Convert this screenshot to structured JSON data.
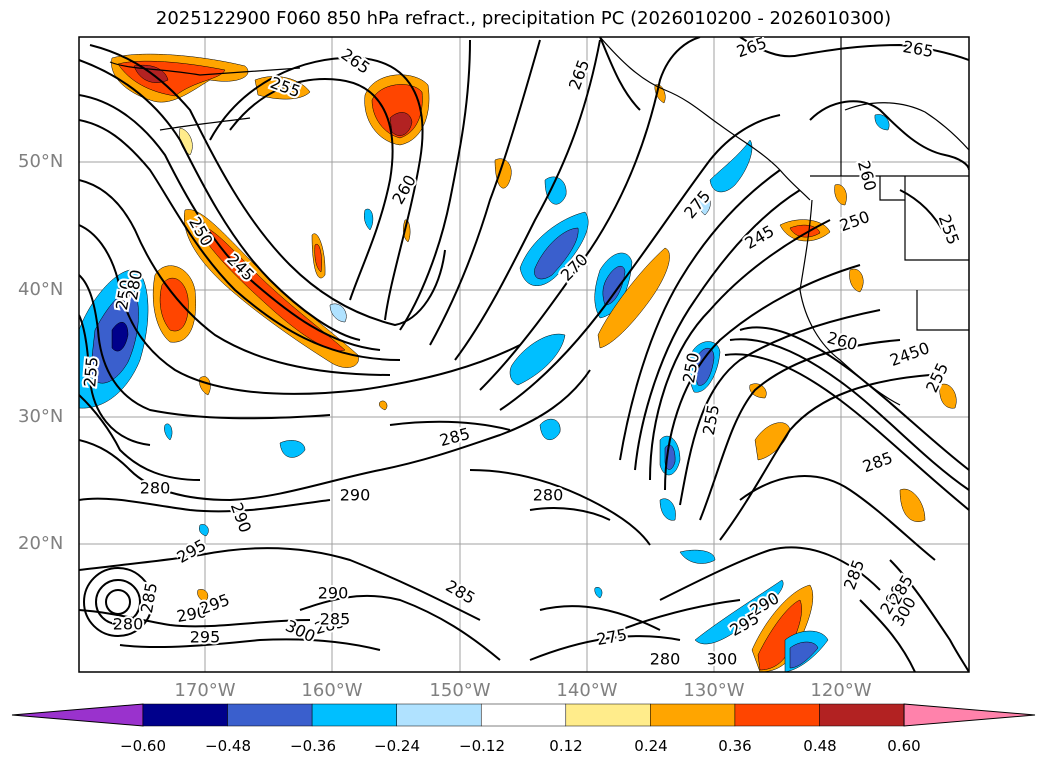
{
  "title": "2025122900 F060 850 hPa refract., precipitation PC (2026010200 - 2026010300)",
  "lat_labels": [
    "50°N",
    "40°N",
    "30°N",
    "20°N"
  ],
  "lon_labels": [
    "170°W",
    "160°W",
    "150°W",
    "140°W",
    "130°W",
    "120°W"
  ],
  "colorbar": {
    "ticks": [
      "−0.60",
      "−0.48",
      "−0.36",
      "−0.24",
      "−0.12",
      "0.12",
      "0.24",
      "0.36",
      "0.48",
      "0.60"
    ],
    "colors": [
      "#9a32cd",
      "#00008b",
      "#3a5fcd",
      "#00bfff",
      "#b0e2ff",
      "#ffffff",
      "#ffec8b",
      "#ffa500",
      "#ff4500",
      "#b22222",
      "#ff82ab"
    ]
  },
  "contour_labels": [
    {
      "text": "265"
    },
    {
      "text": "265"
    },
    {
      "text": "265"
    },
    {
      "text": "265"
    },
    {
      "text": "255"
    },
    {
      "text": "260"
    },
    {
      "text": "260"
    },
    {
      "text": "255"
    },
    {
      "text": "250"
    },
    {
      "text": "245"
    },
    {
      "text": "270"
    },
    {
      "text": "275"
    },
    {
      "text": "245"
    },
    {
      "text": "250"
    },
    {
      "text": "250"
    },
    {
      "text": "255"
    },
    {
      "text": "260"
    },
    {
      "text": "2450"
    },
    {
      "text": "255"
    },
    {
      "text": "285"
    },
    {
      "text": "285"
    },
    {
      "text": "280"
    },
    {
      "text": "290"
    },
    {
      "text": "280"
    },
    {
      "text": "290"
    },
    {
      "text": "295"
    },
    {
      "text": "290"
    },
    {
      "text": "285"
    },
    {
      "text": "285"
    },
    {
      "text": "280"
    },
    {
      "text": "295"
    },
    {
      "text": "285"
    },
    {
      "text": "290"
    },
    {
      "text": "295"
    },
    {
      "text": "300"
    },
    {
      "text": "285"
    },
    {
      "text": "275"
    },
    {
      "text": "280"
    },
    {
      "text": "300"
    },
    {
      "text": "290"
    },
    {
      "text": "295"
    },
    {
      "text": "285"
    },
    {
      "text": "280"
    },
    {
      "text": "285"
    },
    {
      "text": "300"
    },
    {
      "text": "255"
    },
    {
      "text": "250"
    },
    {
      "text": "280"
    }
  ]
}
